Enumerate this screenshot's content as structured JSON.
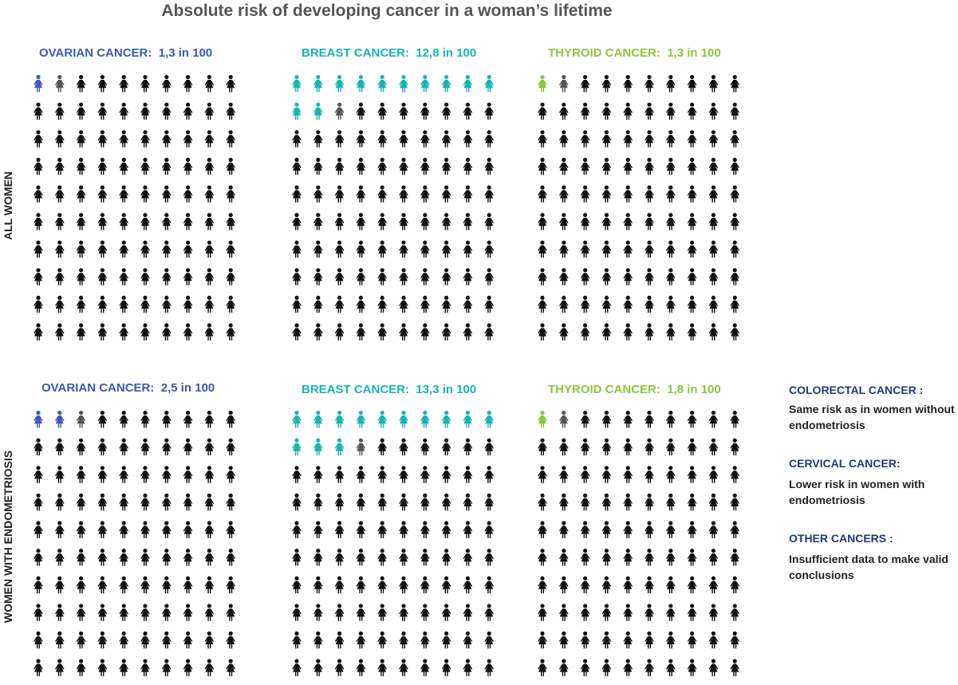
{
  "title": "Absolute risk of developing cancer in a woman’s lifetime",
  "row_labels": [
    "ALL WOMEN",
    "WOMEN WITH ENDOMETRIOSIS"
  ],
  "colors": {
    "ovarian": "#3a5bb0",
    "breast": "#16b5b5",
    "thyroid": "#8cc63e",
    "default_icon": "#111111",
    "partial_icon": "#555555",
    "note_heading": "#1f3a7a"
  },
  "icon": "woman-figure-icon",
  "chart_data": [
    {
      "type": "pictogram",
      "group": "ALL WOMEN",
      "label": "OVARIAN CANCER:",
      "value_text": "1,3 in 100",
      "value": 1.3,
      "per": 100,
      "color_key": "ovarian"
    },
    {
      "type": "pictogram",
      "group": "ALL WOMEN",
      "label": "BREAST CANCER:",
      "value_text": "12,8 in 100",
      "value": 12.8,
      "per": 100,
      "color_key": "breast"
    },
    {
      "type": "pictogram",
      "group": "ALL WOMEN",
      "label": "THYROID CANCER:",
      "value_text": "1,3 in 100",
      "value": 1.3,
      "per": 100,
      "color_key": "thyroid"
    },
    {
      "type": "pictogram",
      "group": "WOMEN WITH ENDOMETRIOSIS",
      "label": "OVARIAN CANCER:",
      "value_text": "2,5 in 100",
      "value": 2.5,
      "per": 100,
      "color_key": "ovarian"
    },
    {
      "type": "pictogram",
      "group": "WOMEN WITH ENDOMETRIOSIS",
      "label": "BREAST CANCER:",
      "value_text": "13,3 in 100",
      "value": 13.3,
      "per": 100,
      "color_key": "breast"
    },
    {
      "type": "pictogram",
      "group": "WOMEN WITH ENDOMETRIOSIS",
      "label": "THYROID CANCER:",
      "value_text": "1,8 in 100",
      "value": 1.8,
      "per": 100,
      "color_key": "thyroid"
    }
  ],
  "notes": [
    {
      "heading": "COLORECTAL CANCER :",
      "text": "Same risk as in women without endometriosis"
    },
    {
      "heading": "CERVICAL CANCER:",
      "text": "Lower risk in women with endometriosis"
    },
    {
      "heading": "OTHER CANCERS :",
      "text": "Insufficient data to make valid conclusions"
    }
  ]
}
